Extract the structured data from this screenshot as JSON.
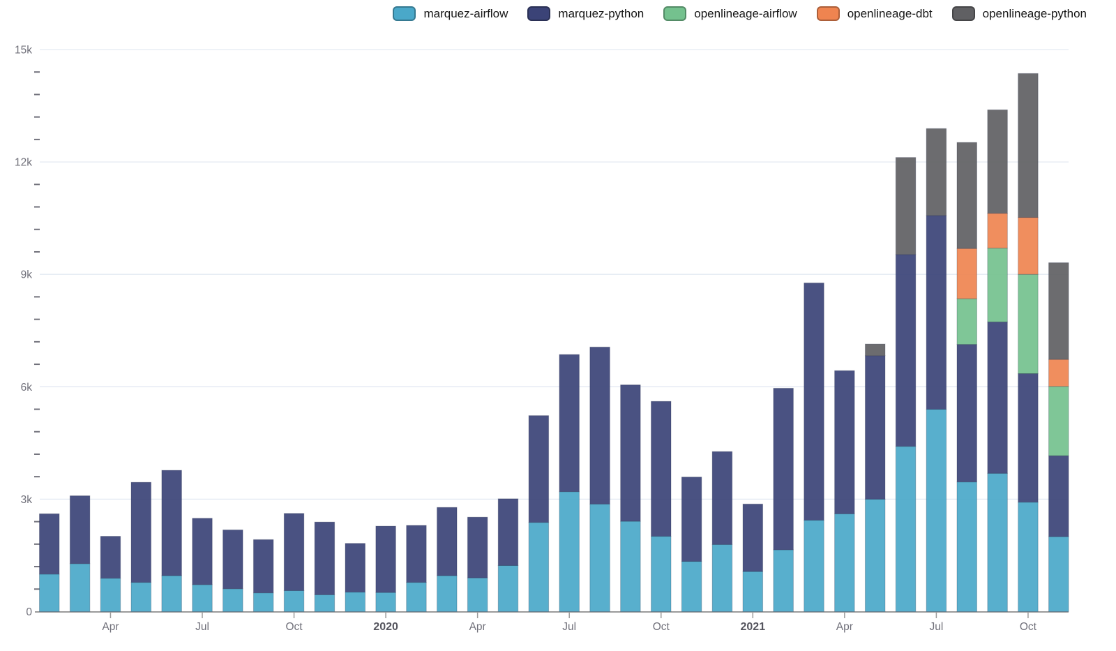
{
  "chart_data": {
    "type": "bar",
    "stacked": true,
    "title": "",
    "xlabel": "",
    "ylabel": "",
    "background": "#ffffff",
    "grid": "horizontal-only",
    "legend_position": "top-right",
    "categories": [
      "2019-02",
      "2019-03",
      "2019-04",
      "2019-05",
      "2019-06",
      "2019-07",
      "2019-08",
      "2019-09",
      "2019-10",
      "2019-11",
      "2019-12",
      "2020-01",
      "2020-02",
      "2020-03",
      "2020-04",
      "2020-05",
      "2020-06",
      "2020-07",
      "2020-08",
      "2020-09",
      "2020-10",
      "2020-11",
      "2020-12",
      "2021-01",
      "2021-02",
      "2021-03",
      "2021-04",
      "2021-05",
      "2021-06",
      "2021-07",
      "2021-08",
      "2021-09",
      "2021-10",
      "2021-11"
    ],
    "series": [
      {
        "name": "marquez-airflow",
        "color": "#4AA8C9",
        "values": [
          1000,
          1280,
          890,
          780,
          960,
          720,
          610,
          500,
          560,
          450,
          520,
          510,
          780,
          960,
          900,
          1230,
          2380,
          3200,
          2870,
          2410,
          2010,
          1340,
          1790,
          1070,
          1650,
          2440,
          2610,
          3000,
          4410,
          5400,
          3460,
          3690,
          2920,
          2000
        ]
      },
      {
        "name": "marquez-python",
        "color": "#3B4377",
        "values": [
          1610,
          1810,
          1120,
          2670,
          2810,
          1770,
          1570,
          1420,
          2060,
          1940,
          1300,
          1770,
          1520,
          1820,
          1620,
          1780,
          2850,
          3660,
          4190,
          3640,
          3600,
          2250,
          2480,
          1800,
          4310,
          6330,
          3820,
          3830,
          5120,
          5170,
          3670,
          4040,
          3430,
          2160
        ]
      },
      {
        "name": "openlineage-airflow",
        "color": "#74C18E",
        "values": [
          0,
          0,
          0,
          0,
          0,
          0,
          0,
          0,
          0,
          0,
          0,
          0,
          0,
          0,
          0,
          0,
          0,
          0,
          0,
          0,
          0,
          0,
          0,
          0,
          0,
          0,
          0,
          0,
          0,
          0,
          1220,
          1970,
          2650,
          1850
        ]
      },
      {
        "name": "openlineage-dbt",
        "color": "#EF8450",
        "values": [
          0,
          0,
          0,
          0,
          0,
          0,
          0,
          0,
          0,
          0,
          0,
          0,
          0,
          0,
          0,
          0,
          0,
          0,
          0,
          0,
          0,
          0,
          0,
          0,
          0,
          0,
          0,
          0,
          0,
          0,
          1340,
          930,
          1520,
          720
        ]
      },
      {
        "name": "openlineage-python",
        "color": "#606063",
        "values": [
          0,
          0,
          0,
          0,
          0,
          0,
          0,
          0,
          0,
          0,
          0,
          0,
          0,
          0,
          0,
          0,
          0,
          0,
          0,
          0,
          0,
          0,
          0,
          0,
          0,
          0,
          0,
          310,
          2590,
          2320,
          2830,
          2760,
          3840,
          2580
        ]
      }
    ],
    "ylim": [
      0,
      15000
    ],
    "y_ticks": [
      {
        "value": 0,
        "label": "0"
      },
      {
        "value": 3000,
        "label": "3k"
      },
      {
        "value": 6000,
        "label": "6k"
      },
      {
        "value": 9000,
        "label": "9k"
      },
      {
        "value": 12000,
        "label": "12k"
      },
      {
        "value": 15000,
        "label": "15k"
      }
    ],
    "y_minor_interval": 600,
    "x_tick_labels": [
      {
        "index": 2,
        "label": "Apr",
        "bold": false
      },
      {
        "index": 5,
        "label": "Jul",
        "bold": false
      },
      {
        "index": 8,
        "label": "Oct",
        "bold": false
      },
      {
        "index": 11,
        "label": "2020",
        "bold": true
      },
      {
        "index": 14,
        "label": "Apr",
        "bold": false
      },
      {
        "index": 17,
        "label": "Jul",
        "bold": false
      },
      {
        "index": 20,
        "label": "Oct",
        "bold": false
      },
      {
        "index": 23,
        "label": "2021",
        "bold": true
      },
      {
        "index": 26,
        "label": "Apr",
        "bold": false
      },
      {
        "index": 29,
        "label": "Jul",
        "bold": false
      },
      {
        "index": 32,
        "label": "Oct",
        "bold": false
      }
    ]
  },
  "colors": {
    "grid": "#e3e9f2",
    "axis": "#9b9b9b",
    "tick_label": "#70707a",
    "bold_tick_label": "#55555e",
    "legend_text": "#161616"
  }
}
